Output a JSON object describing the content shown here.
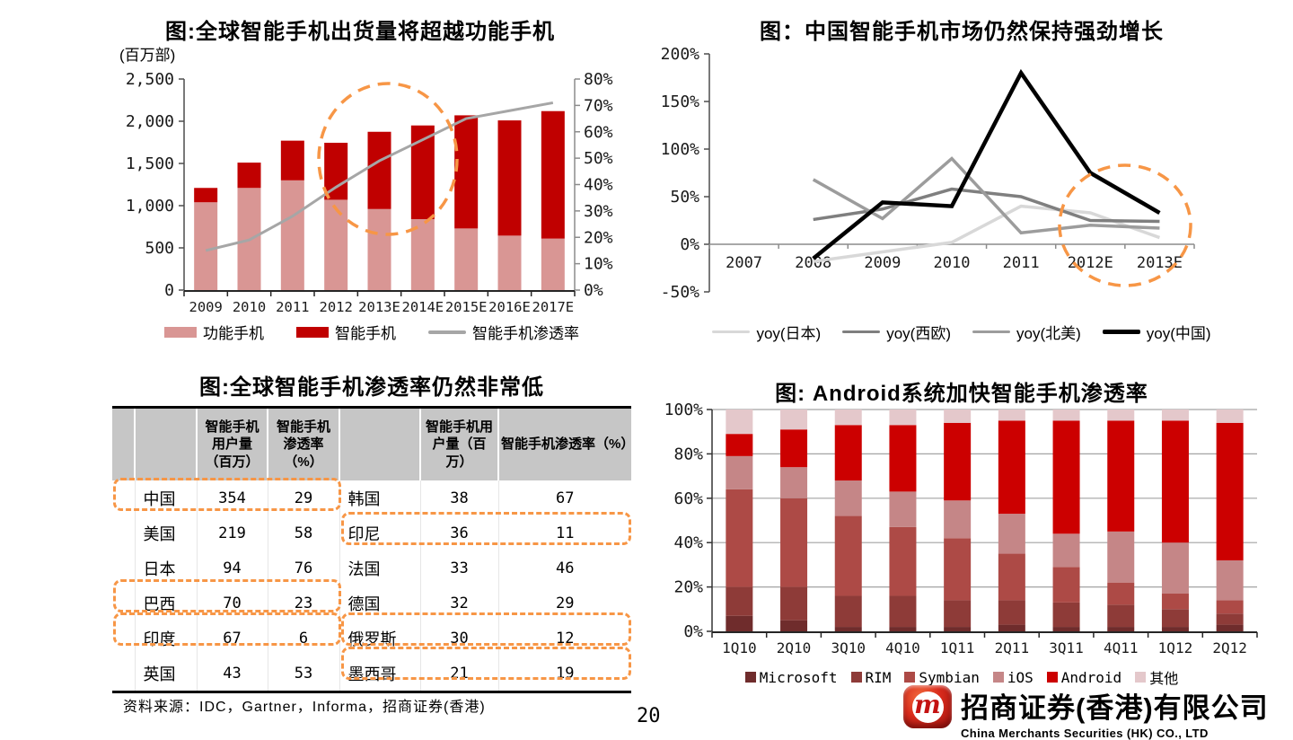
{
  "page": {
    "number": "20",
    "source_note": "资料来源：IDC，Gartner，Informa，招商证券(香港)"
  },
  "logo": {
    "cn": "招商证券(香港)有限公司",
    "en": "China Merchants Securities (HK) CO., LTD",
    "monogram": "m",
    "badge_color": "#C8102E"
  },
  "colors": {
    "highlight_orange": "#F79646",
    "axis_dark": "#4D4D4D",
    "axis_gray": "#8C8C8C",
    "grid_gray": "#A6A6A6",
    "table_header_bg": "#C6C6C6"
  },
  "chart_data": [
    {
      "id": "global_shipments",
      "type": "bar+line",
      "title": "图:全球智能手机出货量将超越功能手机",
      "unit_label": "(百万部)",
      "categories": [
        "2009",
        "2010",
        "2011",
        "2012",
        "2013E",
        "2014E",
        "2015E",
        "2016E",
        "2017E"
      ],
      "series": [
        {
          "name": "功能手机",
          "color": "#D99694",
          "values": [
            1040,
            1210,
            1300,
            1070,
            960,
            840,
            730,
            645,
            610
          ]
        },
        {
          "name": "智能手机",
          "color": "#C00000",
          "values": [
            170,
            300,
            470,
            675,
            915,
            1110,
            1340,
            1365,
            1510
          ]
        }
      ],
      "line_series": {
        "name": "智能手机渗透率",
        "color": "#A6A6A6",
        "axis": "right",
        "values": [
          15,
          19,
          28,
          39,
          49,
          57,
          65,
          68,
          71
        ]
      },
      "left_axis": {
        "min": 0,
        "max": 2500,
        "labels": [
          "2,500",
          "2,000",
          "1,500",
          "1,000",
          "500",
          "0"
        ]
      },
      "right_axis": {
        "min": 0,
        "max": 80,
        "labels": [
          "80%",
          "70%",
          "60%",
          "50%",
          "40%",
          "30%",
          "20%",
          "10%",
          "0%"
        ]
      },
      "highlight_circle": true,
      "legend_position": "bottom"
    },
    {
      "id": "china_growth",
      "type": "line",
      "title": "图：中国智能手机市场仍然保持强劲增长",
      "categories": [
        "2007",
        "2008",
        "2009",
        "2010",
        "2011",
        "2012E",
        "2013E"
      ],
      "y_axis": {
        "min": -50,
        "max": 200,
        "labels": [
          "200%",
          "150%",
          "100%",
          "50%",
          "0%",
          "-50%"
        ]
      },
      "series": [
        {
          "name": "yoy(日本)",
          "color": "#D8D8D8",
          "width": 3.5,
          "values": [
            null,
            -18,
            -8,
            2,
            40,
            33,
            7
          ]
        },
        {
          "name": "yoy(西欧)",
          "color": "#7F7F7F",
          "width": 3.5,
          "values": [
            null,
            26,
            37,
            58,
            50,
            25,
            24
          ]
        },
        {
          "name": "yoy(北美)",
          "color": "#9C9C9C",
          "width": 3.5,
          "values": [
            null,
            68,
            27,
            90,
            12,
            20,
            17
          ]
        },
        {
          "name": "yoy(中国)",
          "color": "#000000",
          "width": 4.5,
          "values": [
            null,
            -15,
            44,
            40,
            180,
            75,
            33
          ]
        }
      ],
      "highlight_circle": true,
      "legend_position": "bottom"
    },
    {
      "id": "penetration_table",
      "type": "table",
      "title": "图:全球智能手机渗透率仍然非常低",
      "columns": [
        "",
        "",
        "智能手机用户量（百万）",
        "智能手机渗透率（%）",
        "",
        "智能手机用户量（百万）",
        "智能手机渗透率（%）"
      ],
      "rows": [
        [
          "",
          "中国",
          "354",
          "29",
          "韩国",
          "38",
          "67"
        ],
        [
          "",
          "美国",
          "219",
          "58",
          "印尼",
          "36",
          "11"
        ],
        [
          "",
          "日本",
          "94",
          "76",
          "法国",
          "33",
          "46"
        ],
        [
          "",
          "巴西",
          "70",
          "23",
          "德国",
          "32",
          "29"
        ],
        [
          "",
          "印度",
          "67",
          "6",
          "俄罗斯",
          "30",
          "12"
        ],
        [
          "",
          "英国",
          "43",
          "53",
          "墨西哥",
          "21",
          "19"
        ]
      ],
      "highlights": [
        {
          "side": "left",
          "row": 0,
          "label": "中国"
        },
        {
          "side": "left",
          "row": 3,
          "label": "巴西"
        },
        {
          "side": "left",
          "row": 4,
          "label": "印度"
        },
        {
          "side": "right",
          "row": 1,
          "label": "印尼"
        },
        {
          "side": "right",
          "row": 4,
          "label": "俄罗斯"
        },
        {
          "side": "right",
          "row": 5,
          "label": "墨西哥"
        }
      ]
    },
    {
      "id": "android_share",
      "type": "stacked_bar",
      "title": "图: Android系统加快智能手机渗透率",
      "categories": [
        "1Q10",
        "2Q10",
        "3Q10",
        "4Q10",
        "1Q11",
        "2Q11",
        "3Q11",
        "4Q11",
        "1Q12",
        "2Q12"
      ],
      "y_axis": {
        "min": 0,
        "max": 100,
        "labels": [
          "100%",
          "80%",
          "60%",
          "40%",
          "20%",
          "0%"
        ]
      },
      "series": [
        {
          "name": "Microsoft",
          "color": "#6F2C2C",
          "values": [
            7,
            5,
            2,
            2,
            2,
            3,
            2,
            2,
            2,
            3
          ]
        },
        {
          "name": "RIM",
          "color": "#8E3B38",
          "values": [
            13,
            15,
            14,
            14,
            12,
            11,
            11,
            10,
            8,
            5
          ]
        },
        {
          "name": "Symbian",
          "color": "#AD4A46",
          "values": [
            44,
            40,
            36,
            31,
            28,
            21,
            16,
            10,
            7,
            6
          ]
        },
        {
          "name": "iOS",
          "color": "#C58687",
          "values": [
            15,
            14,
            16,
            16,
            17,
            18,
            15,
            23,
            23,
            18
          ]
        },
        {
          "name": "Android",
          "color": "#CC0000",
          "values": [
            10,
            17,
            25,
            30,
            35,
            42,
            51,
            50,
            55,
            62
          ]
        },
        {
          "name": "其他",
          "color": "#E4C8CB",
          "values": [
            11,
            9,
            7,
            7,
            6,
            5,
            5,
            5,
            5,
            6
          ]
        }
      ],
      "legend_position": "bottom"
    }
  ]
}
